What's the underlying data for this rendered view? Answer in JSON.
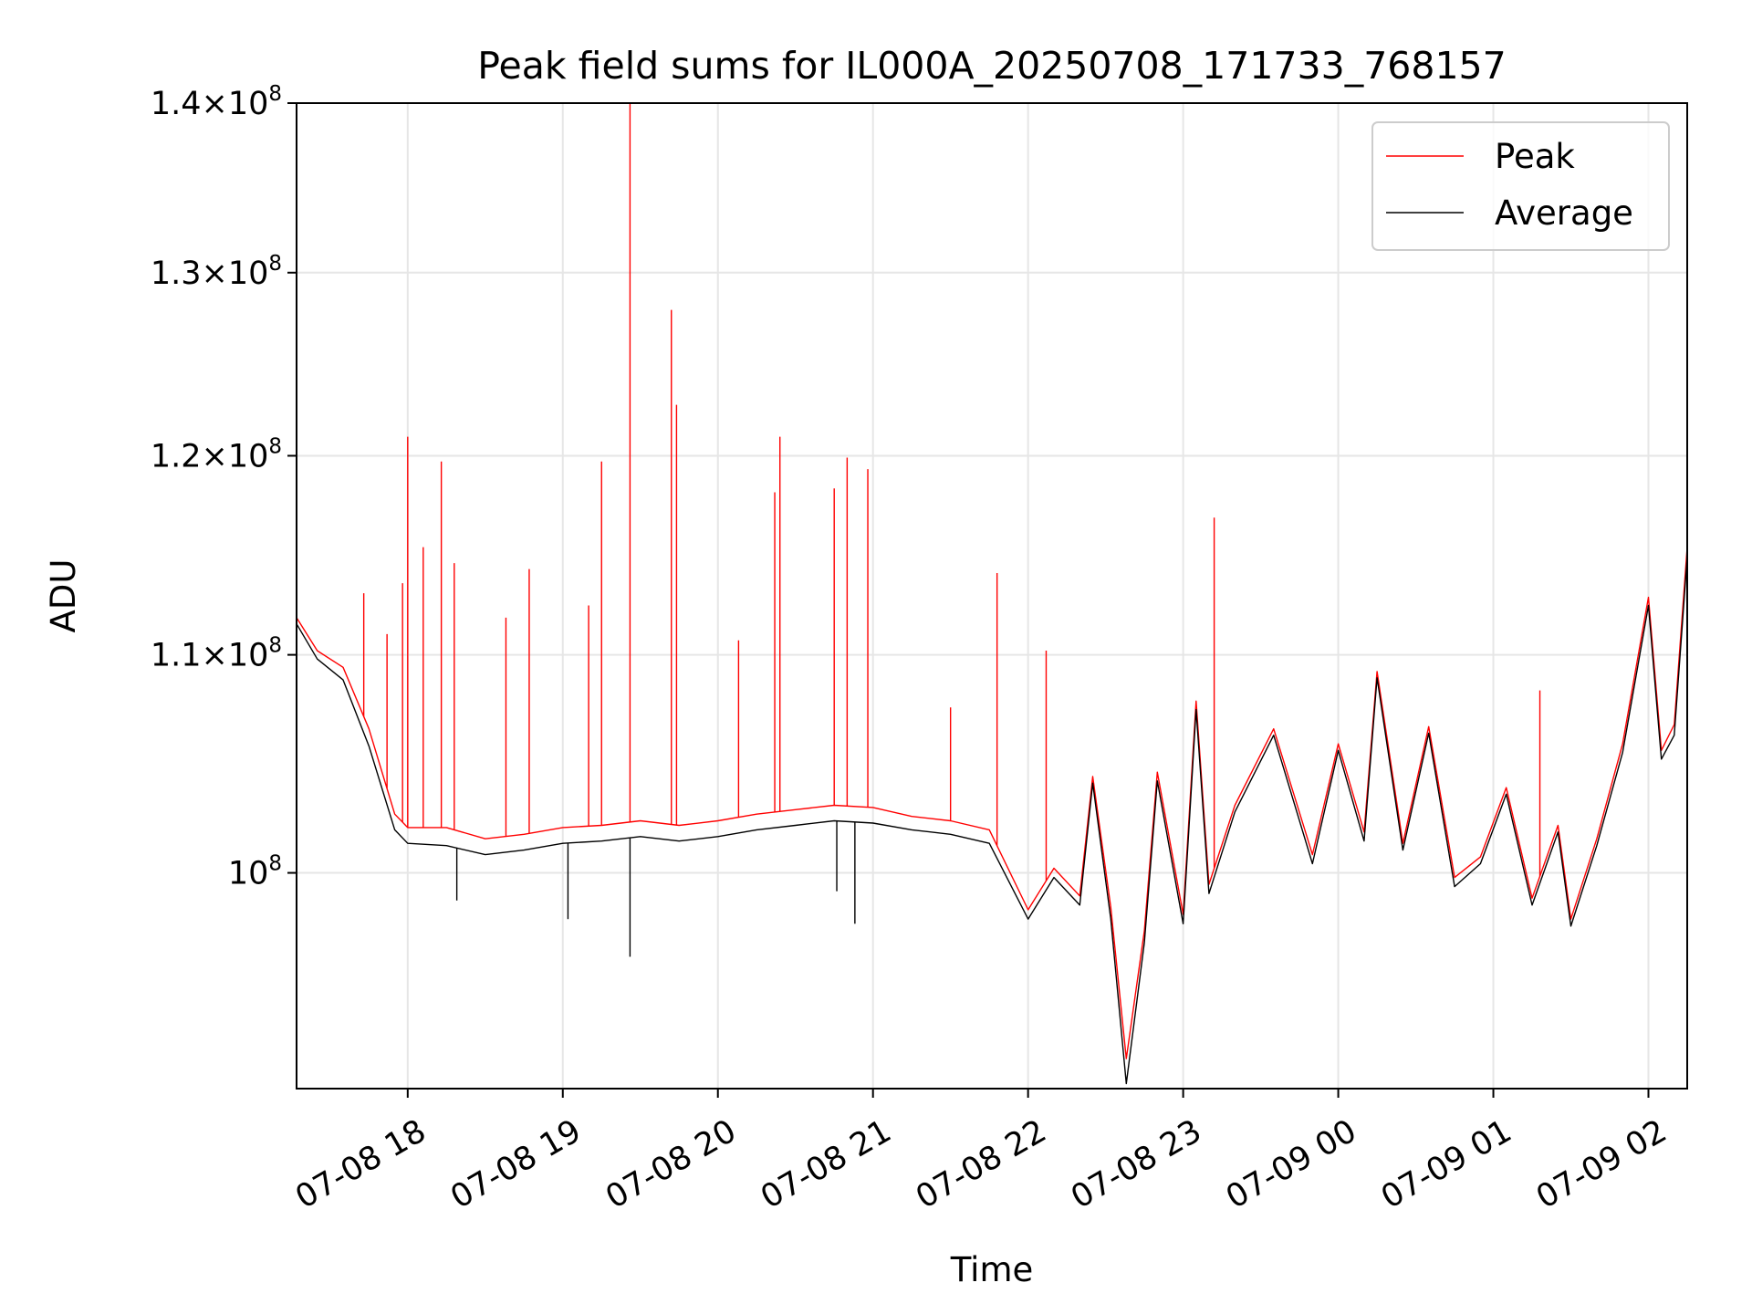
{
  "chart_data": {
    "type": "line",
    "title": "Peak field sums for IL000A_20250708_171733_768157",
    "xlabel": "Time",
    "ylabel": "ADU",
    "x_tick_labels": [
      "07-08 18",
      "07-08 19",
      "07-08 20",
      "07-08 21",
      "07-08 22",
      "07-08 23",
      "07-09 00",
      "07-09 01",
      "07-09 02"
    ],
    "y_tick_labels": [
      "10^8",
      "1.1×10^8",
      "1.2×10^8",
      "1.3×10^8",
      "1.4×10^8"
    ],
    "xlim": [
      "2025-07-08 17:17",
      "2025-07-09 02:15"
    ],
    "ylim": [
      91000000,
      140000000
    ],
    "yscale": "log",
    "grid": true,
    "legend_position": "top-right",
    "series": [
      {
        "name": "Peak",
        "color": "#ff0000",
        "points": [
          [
            "2025-07-08 17:17",
            111800000
          ],
          [
            "2025-07-08 17:25",
            110200000
          ],
          [
            "2025-07-08 17:35",
            109400000
          ],
          [
            "2025-07-08 17:45",
            106500000
          ],
          [
            "2025-07-08 17:55",
            102600000
          ],
          [
            "2025-07-08 18:00",
            102000000
          ],
          [
            "2025-07-08 18:15",
            102000000
          ],
          [
            "2025-07-08 18:30",
            101500000
          ],
          [
            "2025-07-08 18:45",
            101700000
          ],
          [
            "2025-07-08 19:00",
            102000000
          ],
          [
            "2025-07-08 19:15",
            102100000
          ],
          [
            "2025-07-08 19:30",
            102300000
          ],
          [
            "2025-07-08 19:45",
            102100000
          ],
          [
            "2025-07-08 20:00",
            102300000
          ],
          [
            "2025-07-08 20:15",
            102600000
          ],
          [
            "2025-07-08 20:30",
            102800000
          ],
          [
            "2025-07-08 20:45",
            103000000
          ],
          [
            "2025-07-08 21:00",
            102900000
          ],
          [
            "2025-07-08 21:15",
            102500000
          ],
          [
            "2025-07-08 21:30",
            102300000
          ],
          [
            "2025-07-08 21:45",
            101900000
          ],
          [
            "2025-07-08 22:00",
            98400000
          ],
          [
            "2025-07-08 22:10",
            100200000
          ],
          [
            "2025-07-08 22:20",
            99000000
          ],
          [
            "2025-07-08 22:25",
            104300000
          ],
          [
            "2025-07-08 22:32",
            98500000
          ],
          [
            "2025-07-08 22:38",
            92200000
          ],
          [
            "2025-07-08 22:45",
            97500000
          ],
          [
            "2025-07-08 22:50",
            104500000
          ],
          [
            "2025-07-08 23:00",
            98200000
          ],
          [
            "2025-07-08 23:05",
            107800000
          ],
          [
            "2025-07-08 23:10",
            99500000
          ],
          [
            "2025-07-08 23:20",
            103000000
          ],
          [
            "2025-07-08 23:35",
            106500000
          ],
          [
            "2025-07-08 23:50",
            100800000
          ],
          [
            "2025-07-09 00:00",
            105800000
          ],
          [
            "2025-07-09 00:10",
            101800000
          ],
          [
            "2025-07-09 00:15",
            109200000
          ],
          [
            "2025-07-09 00:25",
            101300000
          ],
          [
            "2025-07-09 00:35",
            106600000
          ],
          [
            "2025-07-09 00:45",
            99800000
          ],
          [
            "2025-07-09 00:55",
            100700000
          ],
          [
            "2025-07-09 01:05",
            103800000
          ],
          [
            "2025-07-09 01:15",
            98900000
          ],
          [
            "2025-07-09 01:25",
            102100000
          ],
          [
            "2025-07-09 01:30",
            98000000
          ],
          [
            "2025-07-09 01:40",
            101500000
          ],
          [
            "2025-07-09 01:50",
            105800000
          ],
          [
            "2025-07-09 02:00",
            112800000
          ],
          [
            "2025-07-09 02:05",
            105500000
          ],
          [
            "2025-07-09 02:10",
            106700000
          ],
          [
            "2025-07-09 02:15",
            115300000
          ]
        ]
      },
      {
        "name": "Average",
        "color": "#000000",
        "points": [
          [
            "2025-07-08 17:17",
            111500000
          ],
          [
            "2025-07-08 17:25",
            109800000
          ],
          [
            "2025-07-08 17:35",
            108800000
          ],
          [
            "2025-07-08 17:45",
            105700000
          ],
          [
            "2025-07-08 17:55",
            101900000
          ],
          [
            "2025-07-08 18:00",
            101300000
          ],
          [
            "2025-07-08 18:15",
            101200000
          ],
          [
            "2025-07-08 18:30",
            100800000
          ],
          [
            "2025-07-08 18:45",
            101000000
          ],
          [
            "2025-07-08 19:00",
            101300000
          ],
          [
            "2025-07-08 19:15",
            101400000
          ],
          [
            "2025-07-08 19:30",
            101600000
          ],
          [
            "2025-07-08 19:45",
            101400000
          ],
          [
            "2025-07-08 20:00",
            101600000
          ],
          [
            "2025-07-08 20:15",
            101900000
          ],
          [
            "2025-07-08 20:30",
            102100000
          ],
          [
            "2025-07-08 20:45",
            102300000
          ],
          [
            "2025-07-08 21:00",
            102200000
          ],
          [
            "2025-07-08 21:15",
            101900000
          ],
          [
            "2025-07-08 21:30",
            101700000
          ],
          [
            "2025-07-08 21:45",
            101300000
          ],
          [
            "2025-07-08 22:00",
            98000000
          ],
          [
            "2025-07-08 22:10",
            99800000
          ],
          [
            "2025-07-08 22:20",
            98600000
          ],
          [
            "2025-07-08 22:25",
            104000000
          ],
          [
            "2025-07-08 22:32",
            98000000
          ],
          [
            "2025-07-08 22:38",
            91200000
          ],
          [
            "2025-07-08 22:45",
            97000000
          ],
          [
            "2025-07-08 22:50",
            104100000
          ],
          [
            "2025-07-08 23:00",
            97800000
          ],
          [
            "2025-07-08 23:05",
            107400000
          ],
          [
            "2025-07-08 23:10",
            99100000
          ],
          [
            "2025-07-08 23:20",
            102700000
          ],
          [
            "2025-07-08 23:35",
            106200000
          ],
          [
            "2025-07-08 23:50",
            100400000
          ],
          [
            "2025-07-09 00:00",
            105500000
          ],
          [
            "2025-07-09 00:10",
            101400000
          ],
          [
            "2025-07-09 00:15",
            108900000
          ],
          [
            "2025-07-09 00:25",
            101000000
          ],
          [
            "2025-07-09 00:35",
            106300000
          ],
          [
            "2025-07-09 00:45",
            99400000
          ],
          [
            "2025-07-09 00:55",
            100400000
          ],
          [
            "2025-07-09 01:05",
            103500000
          ],
          [
            "2025-07-09 01:15",
            98600000
          ],
          [
            "2025-07-09 01:25",
            101800000
          ],
          [
            "2025-07-09 01:30",
            97700000
          ],
          [
            "2025-07-09 01:40",
            101200000
          ],
          [
            "2025-07-09 01:50",
            105400000
          ],
          [
            "2025-07-09 02:00",
            112400000
          ],
          [
            "2025-07-09 02:05",
            105100000
          ],
          [
            "2025-07-09 02:10",
            106200000
          ],
          [
            "2025-07-09 02:15",
            114800000
          ]
        ]
      }
    ],
    "peak_spikes": [
      [
        "2025-07-08 17:43",
        113000000
      ],
      [
        "2025-07-08 17:52",
        111000000
      ],
      [
        "2025-07-08 17:58",
        113500000
      ],
      [
        "2025-07-08 18:00",
        121000000
      ],
      [
        "2025-07-08 18:06",
        115300000
      ],
      [
        "2025-07-08 18:13",
        119700000
      ],
      [
        "2025-07-08 18:18",
        114500000
      ],
      [
        "2025-07-08 18:38",
        111800000
      ],
      [
        "2025-07-08 18:47",
        114200000
      ],
      [
        "2025-07-08 19:10",
        112400000
      ],
      [
        "2025-07-08 19:15",
        119700000
      ],
      [
        "2025-07-08 19:26",
        140000000
      ],
      [
        "2025-07-08 19:42",
        127900000
      ],
      [
        "2025-07-08 19:44",
        122700000
      ],
      [
        "2025-07-08 20:08",
        110700000
      ],
      [
        "2025-07-08 20:22",
        118100000
      ],
      [
        "2025-07-08 20:24",
        121000000
      ],
      [
        "2025-07-08 20:45",
        118300000
      ],
      [
        "2025-07-08 20:50",
        119900000
      ],
      [
        "2025-07-08 20:58",
        119300000
      ],
      [
        "2025-07-08 21:30",
        107500000
      ],
      [
        "2025-07-08 21:48",
        114000000
      ],
      [
        "2025-07-08 22:07",
        110200000
      ],
      [
        "2025-07-08 23:12",
        116800000
      ],
      [
        "2025-07-09 01:18",
        108300000
      ]
    ],
    "average_dips": [
      [
        "2025-07-08 18:19",
        98800000
      ],
      [
        "2025-07-08 19:02",
        98000000
      ],
      [
        "2025-07-08 19:26",
        96400000
      ],
      [
        "2025-07-08 20:46",
        99200000
      ],
      [
        "2025-07-08 20:53",
        97800000
      ]
    ]
  }
}
